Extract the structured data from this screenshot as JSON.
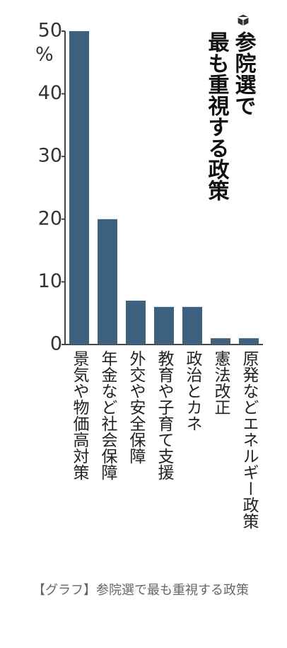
{
  "chart_data": {
    "type": "bar",
    "title": "参院選で",
    "subtitle": "最も重視する政策",
    "y_unit": "%",
    "categories": [
      "景気や物価高対策",
      "年金など社会保障",
      "外交や安全保障",
      "教育や子育て支援",
      "政治とカネ",
      "憲法改正",
      "原発などエネルギー政策"
    ],
    "values": [
      50,
      20,
      7,
      6,
      6,
      1,
      1
    ],
    "color": "#3e6182",
    "ylim": [
      0,
      50
    ],
    "yticks": [
      0,
      10,
      20,
      30,
      40,
      50
    ],
    "grid": false
  },
  "caption": "【グラフ】参院選で最も重視する政策"
}
